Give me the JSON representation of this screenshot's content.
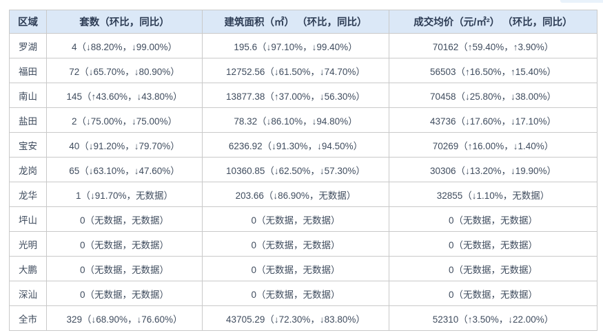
{
  "chart_data": {
    "type": "table",
    "title": "",
    "columns": [
      "区域",
      "套数（环比，同比）",
      "建筑面积（㎡） （环比，同比）",
      "成交均价（元/㎡²） （环比，同比）"
    ],
    "rows": [
      [
        "罗湖",
        "4（↓88.20%，↓99.00%）",
        "195.6（↓97.10%，↓99.40%）",
        "70162（↑59.40%，↑3.90%）"
      ],
      [
        "福田",
        "72（↓65.70%，↓80.90%）",
        "12752.56（↓61.50%，↓74.70%）",
        "56503（↑16.50%，↑15.40%）"
      ],
      [
        "南山",
        "145（↑43.60%，↓43.80%）",
        "13877.38（↑37.00%，↓56.30%）",
        "70458（↓25.80%，↓38.00%）"
      ],
      [
        "盐田",
        "2（↓75.00%，↓75.00%）",
        "78.32（↓86.10%，↓94.80%）",
        "43736（↓17.60%，↓17.10%）"
      ],
      [
        "宝安",
        "40（↓91.20%，↓79.70%）",
        "6236.92（↓91.30%，↓94.50%）",
        "70269（↑16.00%，↓1.40%）"
      ],
      [
        "龙岗",
        "65（↓63.10%，↓47.60%）",
        "10360.85（↓62.50%，↓57.30%）",
        "30306（↓13.20%，↓19.90%）"
      ],
      [
        "龙华",
        "1（↓91.70%，无数据）",
        "203.66（↓86.90%，无数据）",
        "32855（↓1.10%，无数据）"
      ],
      [
        "坪山",
        "0（无数据，无数据）",
        "0（无数据，无数据）",
        "0（无数据，无数据）"
      ],
      [
        "光明",
        "0（无数据，无数据）",
        "0（无数据，无数据）",
        "0（无数据，无数据）"
      ],
      [
        "大鹏",
        "0（无数据，无数据）",
        "0（无数据，无数据）",
        "0（无数据，无数据）"
      ],
      [
        "深汕",
        "0（无数据，无数据）",
        "0（无数据，无数据）",
        "0（无数据，无数据）"
      ],
      [
        "全市",
        "329（↓68.90%，↓76.60%）",
        "43705.29（↓72.30%，↓83.80%）",
        "52310（↑3.50%，↓22.00%）"
      ]
    ],
    "layout": {
      "header_background": "#dbe8f7",
      "header_text_color": "#2e3d55",
      "body_text_color": "#3f4c5e",
      "border_color": "#c9c9c9",
      "grid": "on"
    }
  }
}
